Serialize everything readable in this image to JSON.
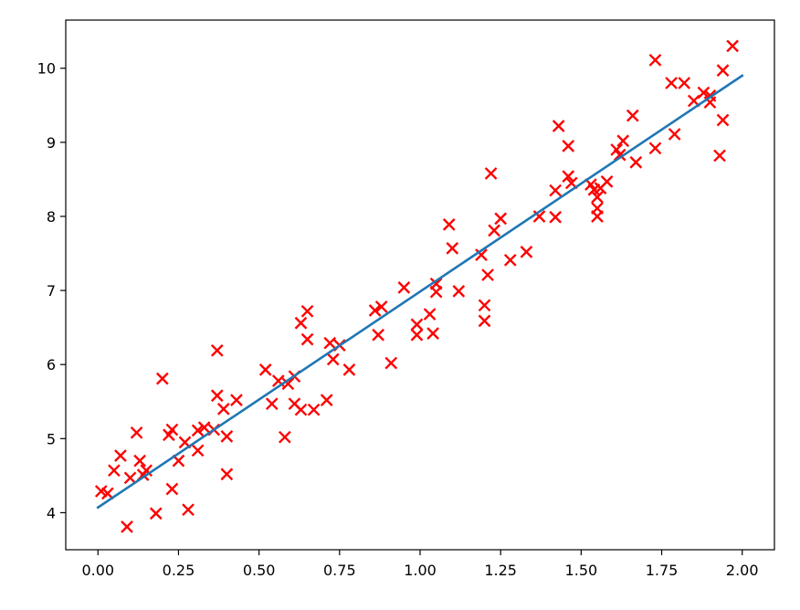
{
  "chart_data": {
    "type": "scatter",
    "title": "",
    "xlabel": "",
    "ylabel": "",
    "xlim": [
      -0.1,
      2.1
    ],
    "ylim": [
      3.5,
      10.65
    ],
    "grid": false,
    "x_ticks": [
      0.0,
      0.25,
      0.5,
      0.75,
      1.0,
      1.25,
      1.5,
      1.75,
      2.0
    ],
    "x_tick_labels": [
      "0.00",
      "0.25",
      "0.50",
      "0.75",
      "1.00",
      "1.25",
      "1.50",
      "1.75",
      "2.00"
    ],
    "y_ticks": [
      4,
      5,
      6,
      7,
      8,
      9,
      10
    ],
    "y_tick_labels": [
      "4",
      "5",
      "6",
      "7",
      "8",
      "9",
      "10"
    ],
    "colors": {
      "scatter": "#ff0000",
      "line": "#1f77b4",
      "axes": "#000000"
    },
    "series": [
      {
        "kind": "scatter",
        "marker": "x",
        "points": [
          [
            0.01,
            4.29
          ],
          [
            0.03,
            4.26
          ],
          [
            0.05,
            4.57
          ],
          [
            0.07,
            4.77
          ],
          [
            0.09,
            3.81
          ],
          [
            0.1,
            4.47
          ],
          [
            0.12,
            5.08
          ],
          [
            0.13,
            4.7
          ],
          [
            0.15,
            4.57
          ],
          [
            0.14,
            4.51
          ],
          [
            0.18,
            3.99
          ],
          [
            0.2,
            5.81
          ],
          [
            0.22,
            5.05
          ],
          [
            0.23,
            5.12
          ],
          [
            0.23,
            4.32
          ],
          [
            0.25,
            4.7
          ],
          [
            0.27,
            4.95
          ],
          [
            0.28,
            4.04
          ],
          [
            0.31,
            5.11
          ],
          [
            0.31,
            4.84
          ],
          [
            0.33,
            5.15
          ],
          [
            0.36,
            5.12
          ],
          [
            0.37,
            5.58
          ],
          [
            0.37,
            6.19
          ],
          [
            0.39,
            5.4
          ],
          [
            0.4,
            5.03
          ],
          [
            0.4,
            4.52
          ],
          [
            0.43,
            5.52
          ],
          [
            0.52,
            5.93
          ],
          [
            0.54,
            5.47
          ],
          [
            0.56,
            5.78
          ],
          [
            0.58,
            5.02
          ],
          [
            0.59,
            5.74
          ],
          [
            0.61,
            5.84
          ],
          [
            0.61,
            5.47
          ],
          [
            0.63,
            5.39
          ],
          [
            0.63,
            6.56
          ],
          [
            0.65,
            6.72
          ],
          [
            0.65,
            6.34
          ],
          [
            0.67,
            5.39
          ],
          [
            0.71,
            5.52
          ],
          [
            0.72,
            6.29
          ],
          [
            0.73,
            6.07
          ],
          [
            0.75,
            6.26
          ],
          [
            0.78,
            5.93
          ],
          [
            0.86,
            6.73
          ],
          [
            0.87,
            6.4
          ],
          [
            0.88,
            6.78
          ],
          [
            0.91,
            6.02
          ],
          [
            0.95,
            7.04
          ],
          [
            0.99,
            6.54
          ],
          [
            0.99,
            6.4
          ],
          [
            1.03,
            6.68
          ],
          [
            1.04,
            6.42
          ],
          [
            1.05,
            7.09
          ],
          [
            1.05,
            6.98
          ],
          [
            1.09,
            7.89
          ],
          [
            1.1,
            7.57
          ],
          [
            1.12,
            6.99
          ],
          [
            1.19,
            7.48
          ],
          [
            1.2,
            6.8
          ],
          [
            1.2,
            6.59
          ],
          [
            1.21,
            7.21
          ],
          [
            1.22,
            8.58
          ],
          [
            1.23,
            7.81
          ],
          [
            1.25,
            7.97
          ],
          [
            1.28,
            7.41
          ],
          [
            1.33,
            7.52
          ],
          [
            1.37,
            8.0
          ],
          [
            1.42,
            8.35
          ],
          [
            1.42,
            7.99
          ],
          [
            1.43,
            9.22
          ],
          [
            1.46,
            8.95
          ],
          [
            1.46,
            8.54
          ],
          [
            1.47,
            8.45
          ],
          [
            1.53,
            8.43
          ],
          [
            1.54,
            8.36
          ],
          [
            1.55,
            8.26
          ],
          [
            1.55,
            8.11
          ],
          [
            1.55,
            8.0
          ],
          [
            1.56,
            8.38
          ],
          [
            1.58,
            8.47
          ],
          [
            1.61,
            8.9
          ],
          [
            1.62,
            8.83
          ],
          [
            1.63,
            9.02
          ],
          [
            1.66,
            9.36
          ],
          [
            1.67,
            8.73
          ],
          [
            1.73,
            10.11
          ],
          [
            1.73,
            8.92
          ],
          [
            1.78,
            9.8
          ],
          [
            1.79,
            9.11
          ],
          [
            1.82,
            9.8
          ],
          [
            1.85,
            9.56
          ],
          [
            1.88,
            9.67
          ],
          [
            1.9,
            9.54
          ],
          [
            1.9,
            9.63
          ],
          [
            1.93,
            8.82
          ],
          [
            1.94,
            9.97
          ],
          [
            1.94,
            9.3
          ],
          [
            1.97,
            10.3
          ]
        ]
      },
      {
        "kind": "line",
        "x": [
          0.0,
          2.0
        ],
        "y": [
          4.07,
          9.9
        ]
      }
    ]
  }
}
